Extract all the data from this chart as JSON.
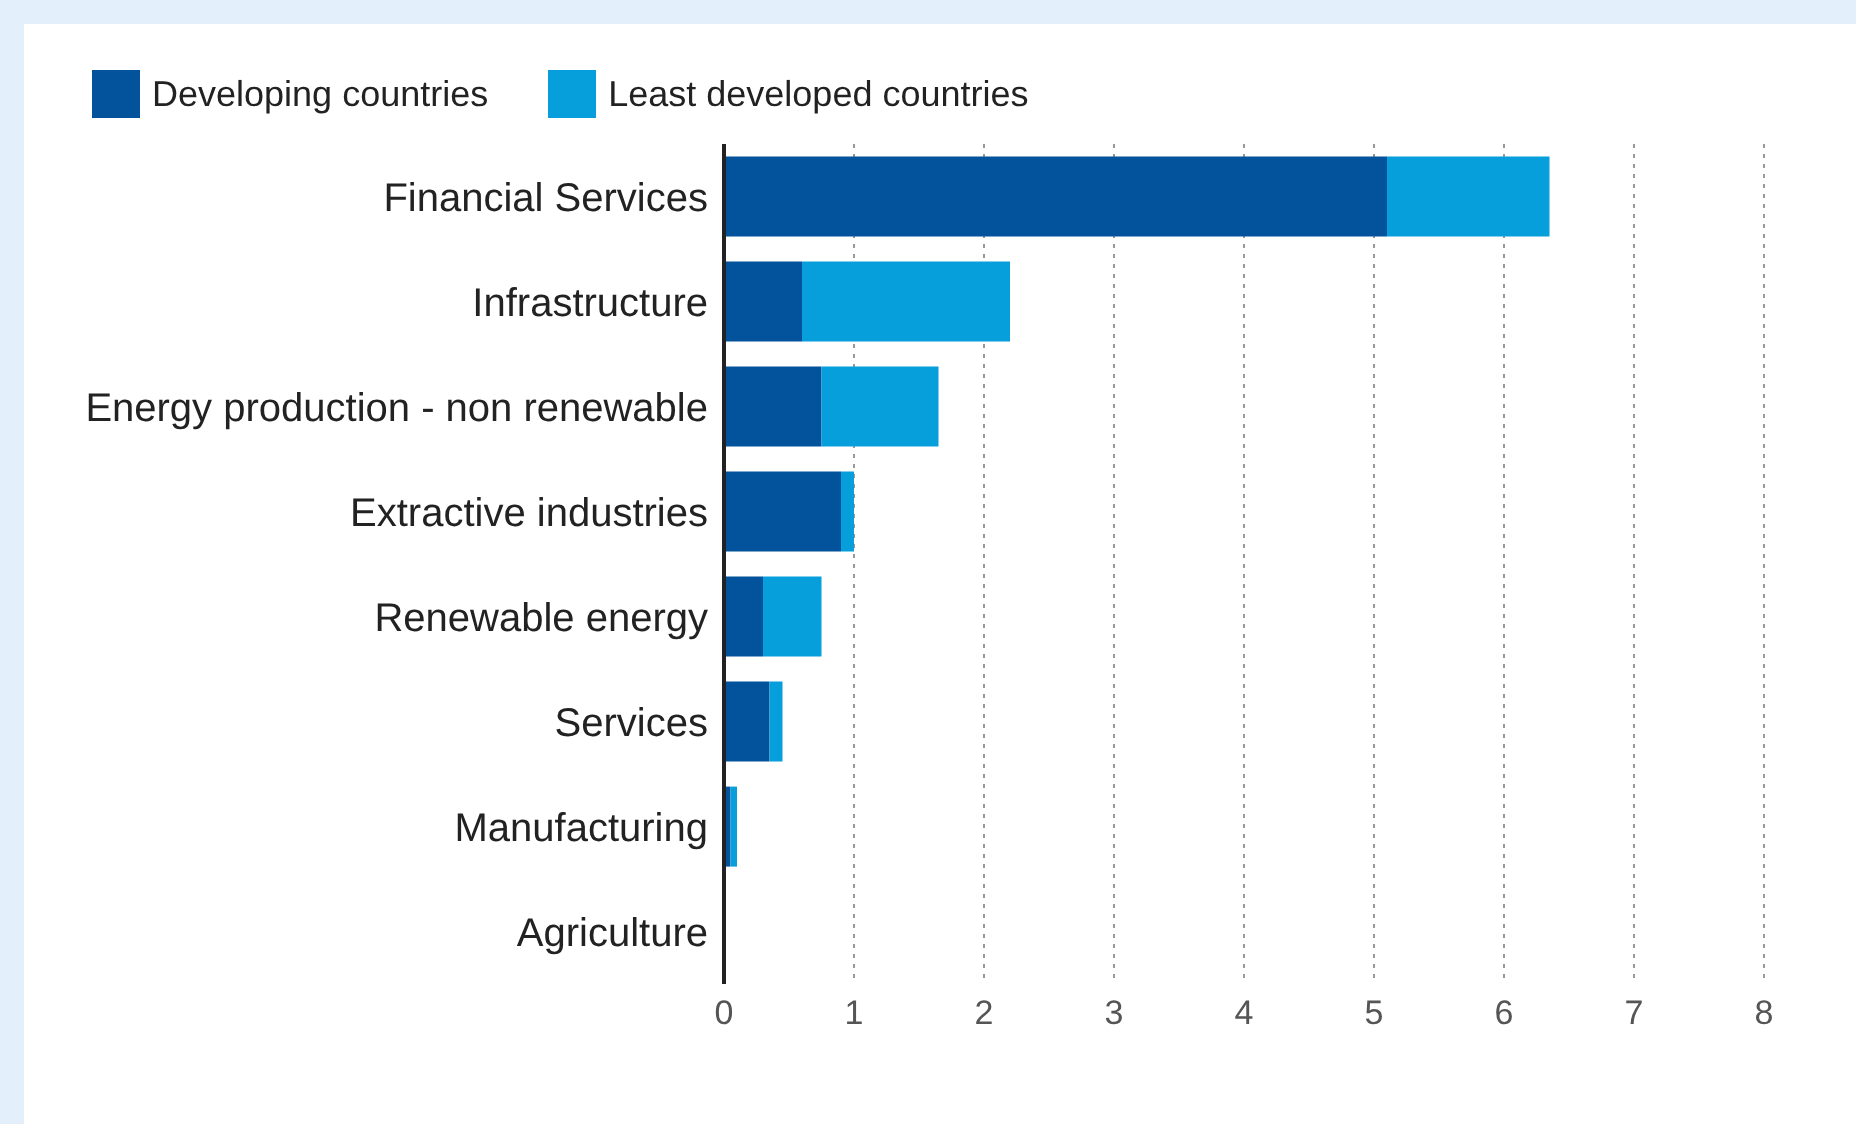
{
  "chart_data": {
    "type": "bar",
    "orientation": "horizontal",
    "stacked": true,
    "categories": [
      "Financial Services",
      "Infrastructure",
      "Energy production - non renewable",
      "Extractive industries",
      "Renewable energy",
      "Services",
      "Manufacturing",
      "Agriculture"
    ],
    "series": [
      {
        "name": "Developing countries",
        "color": "#02529c",
        "values": [
          5.1,
          0.6,
          0.75,
          0.9,
          0.3,
          0.35,
          0.05,
          0
        ]
      },
      {
        "name": "Least developed countries",
        "color": "#069fdb",
        "values": [
          1.25,
          1.6,
          0.9,
          0.1,
          0.45,
          0.1,
          0.05,
          0
        ]
      }
    ],
    "xlim": [
      0,
      8
    ],
    "xticks": [
      0,
      1,
      2,
      3,
      4,
      5,
      6,
      7,
      8
    ],
    "grid": "x",
    "legend": "top left"
  }
}
